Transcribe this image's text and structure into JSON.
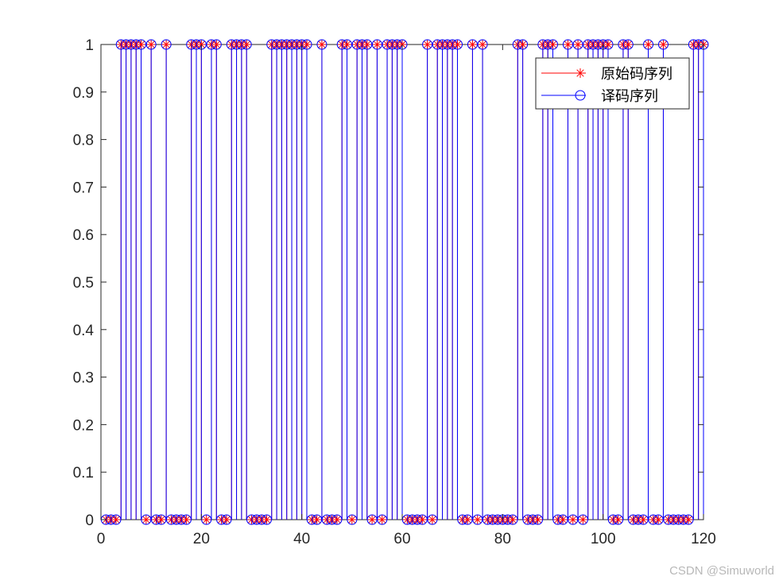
{
  "chart_data": {
    "type": "stem",
    "x": [
      1,
      2,
      3,
      4,
      5,
      6,
      7,
      8,
      9,
      10,
      11,
      12,
      13,
      14,
      15,
      16,
      17,
      18,
      19,
      20,
      21,
      22,
      23,
      24,
      25,
      26,
      27,
      28,
      29,
      30,
      31,
      32,
      33,
      34,
      35,
      36,
      37,
      38,
      39,
      40,
      41,
      42,
      43,
      44,
      45,
      46,
      47,
      48,
      49,
      50,
      51,
      52,
      53,
      54,
      55,
      56,
      57,
      58,
      59,
      60,
      61,
      62,
      63,
      64,
      65,
      66,
      67,
      68,
      69,
      70,
      71,
      72,
      73,
      74,
      75,
      76,
      77,
      78,
      79,
      80,
      81,
      82,
      83,
      84,
      85,
      86,
      87,
      88,
      89,
      90,
      91,
      92,
      93,
      94,
      95,
      96,
      97,
      98,
      99,
      100,
      101,
      102,
      103,
      104,
      105,
      106,
      107,
      108,
      109,
      110,
      111,
      112,
      113,
      114,
      115,
      116,
      117,
      118,
      119,
      120
    ],
    "series": [
      {
        "name": "原始码序列",
        "marker": "asterisk",
        "color": "#ff0000",
        "values": [
          0,
          0,
          0,
          1,
          1,
          1,
          1,
          1,
          0,
          1,
          0,
          0,
          1,
          0,
          0,
          0,
          0,
          1,
          1,
          1,
          0,
          1,
          1,
          0,
          0,
          1,
          1,
          1,
          1,
          0,
          0,
          0,
          0,
          1,
          1,
          1,
          1,
          1,
          1,
          1,
          1,
          0,
          0,
          1,
          0,
          0,
          0,
          1,
          1,
          0,
          1,
          1,
          1,
          0,
          1,
          0,
          1,
          1,
          1,
          1,
          0,
          0,
          0,
          0,
          1,
          0,
          1,
          1,
          1,
          1,
          1,
          0,
          0,
          1,
          0,
          1,
          0,
          0,
          0,
          0,
          0,
          0,
          1,
          1,
          0,
          0,
          0,
          1,
          1,
          1,
          0,
          0,
          1,
          0,
          1,
          0,
          1,
          1,
          1,
          1,
          1,
          0,
          0,
          1,
          1,
          0,
          0,
          0,
          1,
          0,
          0,
          1,
          0,
          0,
          0,
          0,
          0,
          1,
          1,
          1
        ]
      },
      {
        "name": "译码序列",
        "marker": "circle",
        "color": "#0000ff",
        "values": [
          0,
          0,
          0,
          1,
          1,
          1,
          1,
          1,
          0,
          1,
          0,
          0,
          1,
          0,
          0,
          0,
          0,
          1,
          1,
          1,
          0,
          1,
          1,
          0,
          0,
          1,
          1,
          1,
          1,
          0,
          0,
          0,
          0,
          1,
          1,
          1,
          1,
          1,
          1,
          1,
          1,
          0,
          0,
          1,
          0,
          0,
          0,
          1,
          1,
          0,
          1,
          1,
          1,
          0,
          1,
          0,
          1,
          1,
          1,
          1,
          0,
          0,
          0,
          0,
          1,
          0,
          1,
          1,
          1,
          1,
          1,
          0,
          0,
          1,
          0,
          1,
          0,
          0,
          0,
          0,
          0,
          0,
          1,
          1,
          0,
          0,
          0,
          1,
          1,
          1,
          0,
          0,
          1,
          0,
          1,
          0,
          1,
          1,
          1,
          1,
          1,
          0,
          0,
          1,
          1,
          0,
          0,
          0,
          1,
          0,
          0,
          1,
          0,
          0,
          0,
          0,
          0,
          1,
          1,
          1
        ]
      }
    ],
    "xlim": [
      0,
      120
    ],
    "ylim": [
      0,
      1
    ],
    "xticks": [
      "0",
      "20",
      "40",
      "60",
      "80",
      "100",
      "120"
    ],
    "yticks": [
      "0",
      "0.1",
      "0.2",
      "0.3",
      "0.4",
      "0.5",
      "0.6",
      "0.7",
      "0.8",
      "0.9",
      "1"
    ],
    "grid": false,
    "legend_position": "top-right",
    "title": "",
    "xlabel": "",
    "ylabel": ""
  },
  "watermark": "CSDN @Simuworld"
}
